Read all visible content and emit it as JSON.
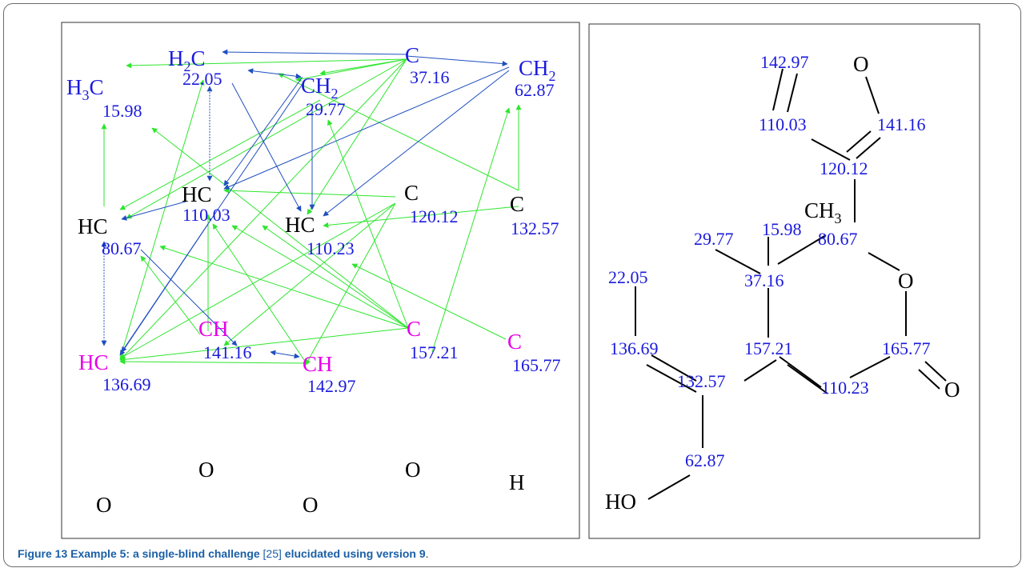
{
  "caption": {
    "label": "Figure 13",
    "title_part1": "Example 5: a single-blind challenge",
    "ref": "[25]",
    "title_part2": "elucidated using version 9",
    "period": "."
  },
  "left_panel": {
    "atoms": [
      {
        "id": "h2c",
        "text": "H",
        "sub": "2",
        "tail": "C",
        "shift": "22.05"
      },
      {
        "id": "h3c",
        "text": "H",
        "sub": "3",
        "tail": "C",
        "shift": "15.98"
      },
      {
        "id": "c1",
        "text": "C",
        "shift": "37.16"
      },
      {
        "id": "ch2a",
        "text": "CH",
        "sub": "2",
        "shift": "29.77"
      },
      {
        "id": "ch2b",
        "text": "CH",
        "sub": "2",
        "shift": "62.87"
      },
      {
        "id": "hc1",
        "text": "HC",
        "shift": "110.03"
      },
      {
        "id": "c2",
        "text": "C",
        "shift": "120.12"
      },
      {
        "id": "hc2",
        "text": "HC",
        "shift": "80.67"
      },
      {
        "id": "hc3",
        "text": "HC",
        "shift": "110.23"
      },
      {
        "id": "c3",
        "text": "C",
        "shift": "132.57"
      },
      {
        "id": "ch1",
        "text": "CH",
        "shift": "141.16"
      },
      {
        "id": "c4",
        "text": "C",
        "shift": "157.21"
      },
      {
        "id": "c5",
        "text": "C",
        "shift": "165.77"
      },
      {
        "id": "hc4",
        "text": "HC",
        "shift": "136.69"
      },
      {
        "id": "ch3",
        "text": "CH",
        "shift": "142.97"
      }
    ],
    "heteroatoms": [
      "O",
      "O",
      "O",
      "O",
      "H"
    ]
  },
  "right_panel": {
    "labels": {
      "s14297": "142.97",
      "o_ring": "O",
      "s11003": "110.03",
      "s14116": "141.16",
      "s12012": "120.12",
      "ch3": "CH",
      "ch3_sub": "3",
      "s2977": "29.77",
      "s1598": "15.98",
      "s8067": "80.67",
      "s2205": "22.05",
      "s3716": "37.16",
      "o_lac": "O",
      "s13669": "136.69",
      "s15721": "157.21",
      "s16577": "165.77",
      "s13257": "132.57",
      "s11023": "110.23",
      "o_carb": "O",
      "s6287": "62.87",
      "ho": "HO"
    }
  },
  "colors": {
    "green_arrow": "#2ee62e",
    "blue_arrow": "#1f4fbf",
    "blue_text": "#1a1adc",
    "magenta_text": "#e600e6",
    "caption_bold": "#1a5fa6"
  }
}
